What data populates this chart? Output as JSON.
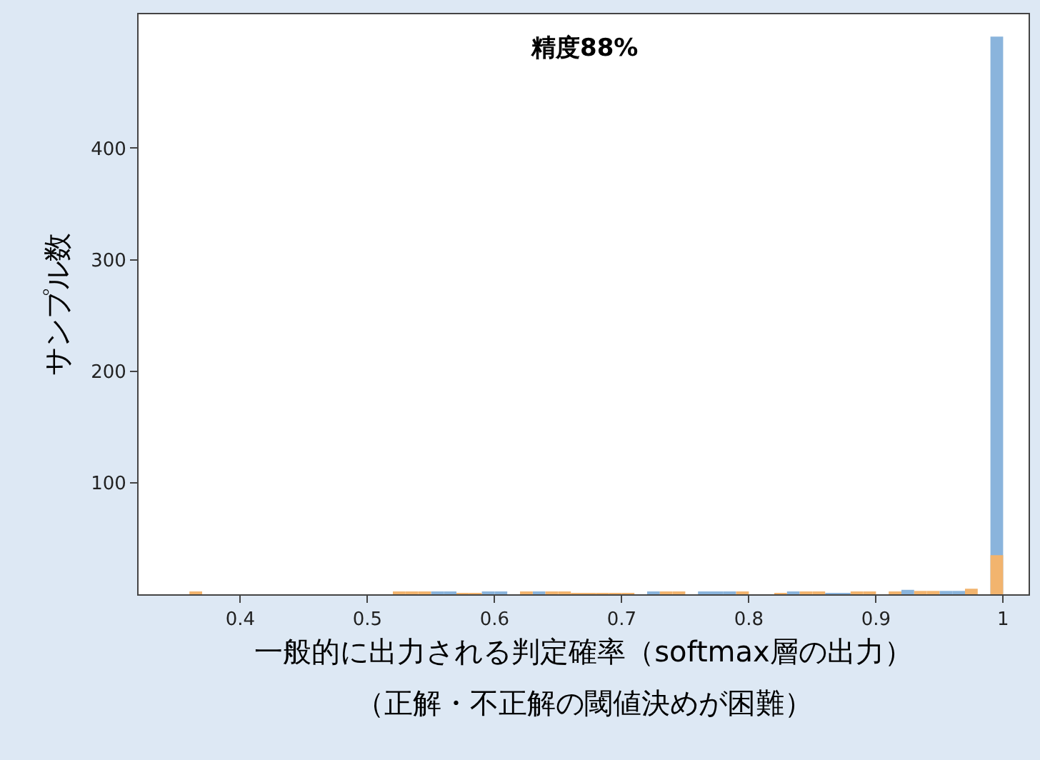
{
  "chart_data": {
    "type": "histogram",
    "title": "精度88%",
    "xlabel": "一般的に出力される判定確率（softmax層の出力）",
    "ylabel": "サンプル数",
    "annotations": [
      "（正解・不正解の閾値決めが困難）"
    ],
    "bins": [
      0.35,
      0.36,
      0.37,
      0.38,
      0.39,
      0.4,
      0.41,
      0.42,
      0.43,
      0.44,
      0.45,
      0.46,
      0.47,
      0.48,
      0.49,
      0.5,
      0.51,
      0.52,
      0.53,
      0.54,
      0.55,
      0.56,
      0.57,
      0.58,
      0.59,
      0.6,
      0.61,
      0.62,
      0.63,
      0.64,
      0.65,
      0.66,
      0.67,
      0.68,
      0.69,
      0.7,
      0.71,
      0.72,
      0.73,
      0.74,
      0.75,
      0.76,
      0.77,
      0.78,
      0.79,
      0.8,
      0.81,
      0.82,
      0.83,
      0.84,
      0.85,
      0.86,
      0.87,
      0.88,
      0.89,
      0.9,
      0.91,
      0.92,
      0.93,
      0.94,
      0.95,
      0.96,
      0.97,
      0.98,
      0.99,
      1.0
    ],
    "series": [
      {
        "color": "#8ab4dc",
        "values": [
          0,
          0,
          0,
          0,
          0,
          0,
          0,
          0,
          0,
          0,
          0,
          0,
          0,
          0,
          0,
          0,
          0,
          0,
          0,
          0,
          2,
          2,
          0,
          0,
          2,
          2,
          0,
          0,
          2,
          0,
          0,
          0,
          0,
          0,
          0,
          0,
          0,
          2,
          0,
          0,
          0,
          2,
          2,
          2,
          0,
          0,
          0,
          0,
          2,
          0,
          0,
          1,
          1,
          0,
          0,
          0,
          0,
          4,
          0,
          0,
          3,
          3,
          0,
          0,
          500
        ]
      },
      {
        "color": "#f2b46e",
        "values": [
          0,
          2,
          0,
          0,
          0,
          0,
          0,
          0,
          0,
          0,
          0,
          0,
          0,
          0,
          0,
          0,
          0,
          2,
          2,
          2,
          0,
          0,
          1,
          1,
          0,
          0,
          0,
          2,
          0,
          2,
          2,
          1,
          1,
          1,
          1,
          1,
          0,
          0,
          2,
          2,
          0,
          0,
          0,
          0,
          2,
          0,
          0,
          1,
          0,
          2,
          2,
          0,
          0,
          2,
          2,
          0,
          2,
          0,
          3,
          3,
          0,
          0,
          5,
          0,
          35
        ]
      }
    ],
    "xlim": [
      0.32,
      1.02
    ],
    "xticks": [
      0.4,
      0.5,
      0.6,
      0.7,
      0.8,
      0.9,
      1.0
    ],
    "ylim": [
      0,
      520
    ],
    "yticks": [
      100,
      200,
      300,
      400
    ]
  }
}
